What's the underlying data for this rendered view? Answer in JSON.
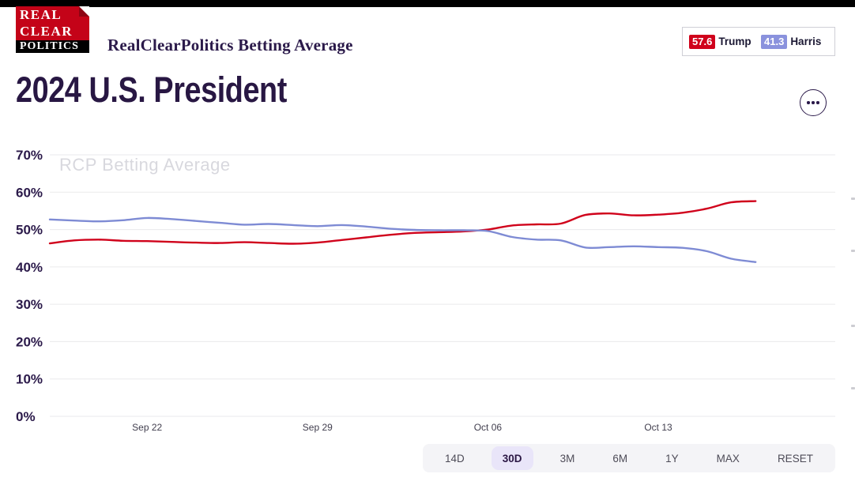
{
  "header": {
    "logo_lines": [
      "REAL",
      "CLEAR",
      "POLITICS"
    ],
    "title": "RealClearPolitics Betting Average",
    "scoreboard": {
      "candidates": [
        {
          "name": "Trump",
          "value": "57.6",
          "badge_color": "#d0021b"
        },
        {
          "name": "Harris",
          "value": "41.3",
          "badge_color": "#8a92dd"
        }
      ]
    }
  },
  "page": {
    "title": "2024 U.S. President"
  },
  "chart_data": {
    "type": "line",
    "watermark": "RCP Betting Average",
    "x": [
      "Sep 18",
      "Sep 19",
      "Sep 20",
      "Sep 21",
      "Sep 22",
      "Sep 23",
      "Sep 24",
      "Sep 25",
      "Sep 26",
      "Sep 27",
      "Sep 28",
      "Sep 29",
      "Sep 30",
      "Oct 01",
      "Oct 02",
      "Oct 03",
      "Oct 04",
      "Oct 05",
      "Oct 06",
      "Oct 07",
      "Oct 08",
      "Oct 09",
      "Oct 10",
      "Oct 11",
      "Oct 12",
      "Oct 13",
      "Oct 14",
      "Oct 15",
      "Oct 16",
      "Oct 17"
    ],
    "x_tick_labels": [
      "Sep 22",
      "Sep 29",
      "Oct 06",
      "Oct 13"
    ],
    "x_tick_indices": [
      4,
      11,
      18,
      25
    ],
    "y_ticks": [
      "0%",
      "10%",
      "20%",
      "30%",
      "40%",
      "50%",
      "60%",
      "70%"
    ],
    "ylim": [
      0,
      75
    ],
    "grid": true,
    "legend_position": "none",
    "series": [
      {
        "name": "Trump",
        "color": "#d0021b",
        "values": [
          46.3,
          47.1,
          47.3,
          47.0,
          46.9,
          46.7,
          46.5,
          46.4,
          46.6,
          46.4,
          46.2,
          46.5,
          47.2,
          47.9,
          48.6,
          49.1,
          49.3,
          49.5,
          50.0,
          51.1,
          51.4,
          51.6,
          53.9,
          54.3,
          53.8,
          54.0,
          54.5,
          55.6,
          57.3,
          57.6
        ]
      },
      {
        "name": "Harris",
        "color": "#7e8bd4",
        "values": [
          52.7,
          52.4,
          52.2,
          52.5,
          53.1,
          52.8,
          52.3,
          51.8,
          51.3,
          51.5,
          51.2,
          50.9,
          51.2,
          50.8,
          50.2,
          49.9,
          49.8,
          49.8,
          49.6,
          48.0,
          47.3,
          47.1,
          45.2,
          45.3,
          45.5,
          45.3,
          45.1,
          44.2,
          42.2,
          41.3
        ]
      }
    ]
  },
  "range_buttons": {
    "options": [
      "14D",
      "30D",
      "3M",
      "6M",
      "1Y",
      "MAX",
      "RESET"
    ],
    "selected": "30D"
  }
}
